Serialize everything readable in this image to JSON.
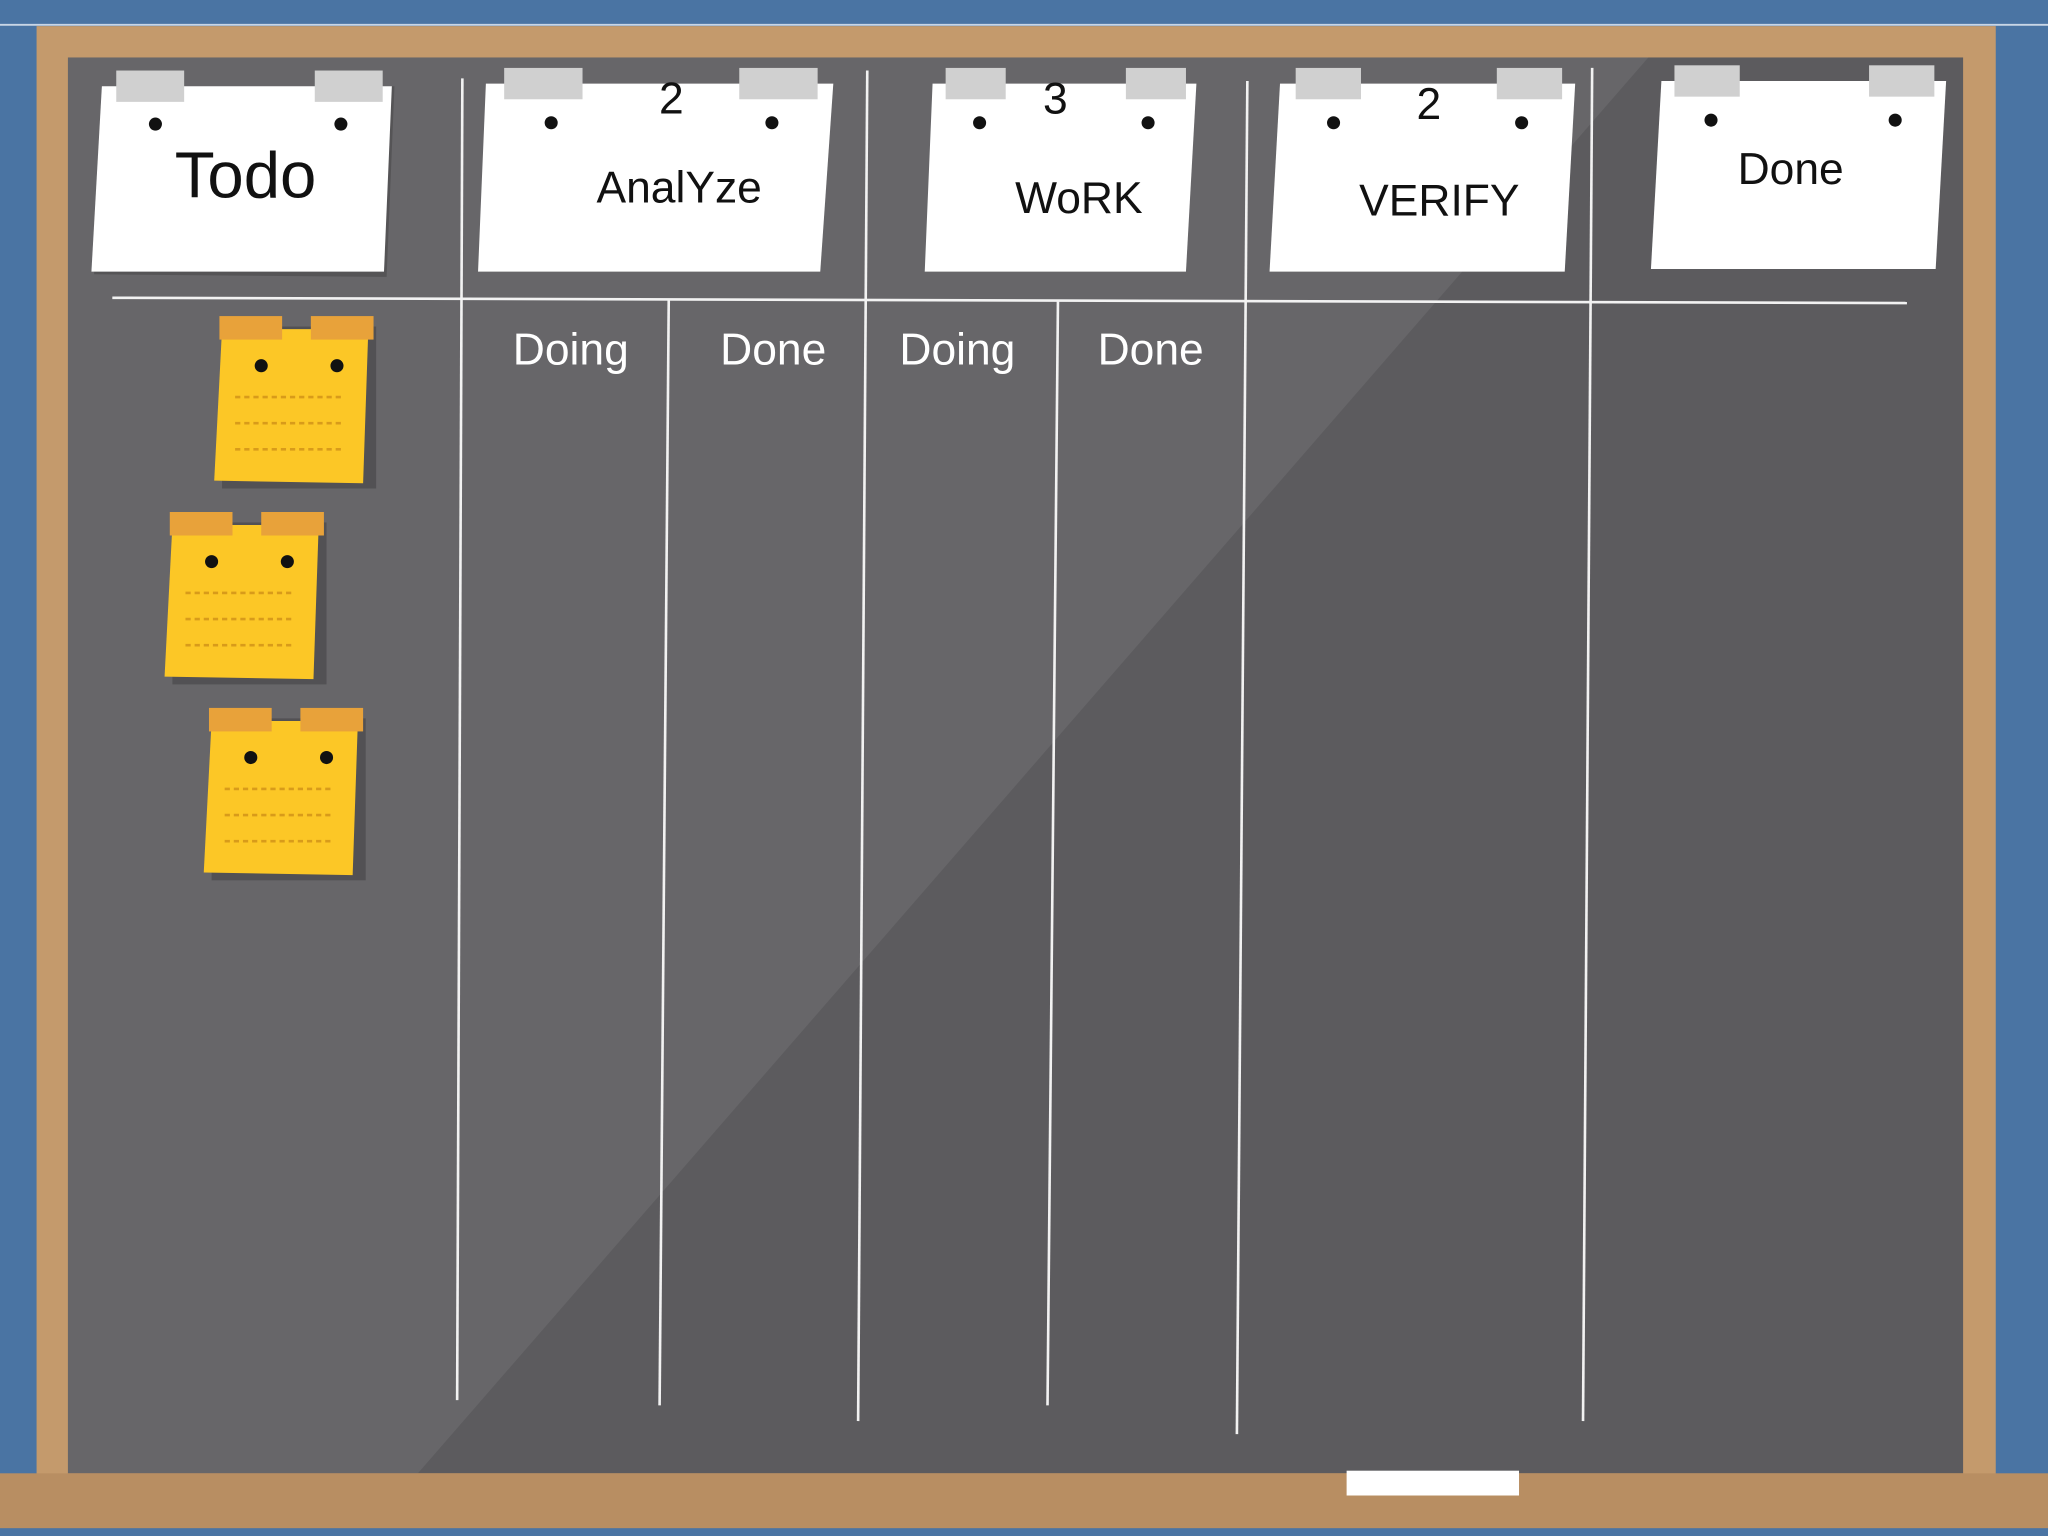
{
  "board": {
    "columns": [
      {
        "title": "Todo"
      },
      {
        "title": "AnalYze",
        "limit": 2,
        "subcolumns": [
          "Doing",
          "Done"
        ]
      },
      {
        "title": "WoRK",
        "limit": 3,
        "subcolumns": [
          "Doing",
          "Done"
        ]
      },
      {
        "title": "VERIFY",
        "limit": 2
      },
      {
        "title": "Done"
      }
    ]
  }
}
